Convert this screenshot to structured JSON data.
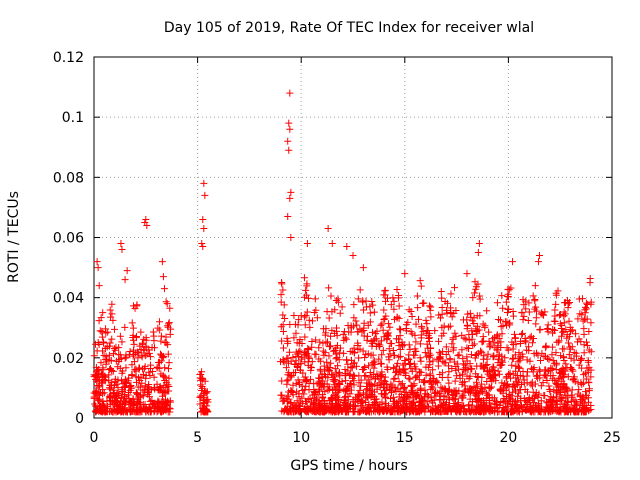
{
  "chart_data": {
    "type": "scatter",
    "title": "Day 105 of 2019, Rate Of TEC Index for receiver wlal",
    "xlabel": "GPS time / hours",
    "ylabel": "ROTI / TECUs",
    "xlim": [
      0,
      25
    ],
    "ylim": [
      0,
      0.12
    ],
    "x_ticks": [
      0,
      5,
      10,
      15,
      20,
      25
    ],
    "x_tick_labels": [
      "0",
      "5",
      "10",
      "15",
      "20",
      "25"
    ],
    "y_ticks": [
      0,
      0.02,
      0.04,
      0.06,
      0.08,
      0.1,
      0.12
    ],
    "y_tick_labels": [
      "0",
      "0.02",
      "0.04",
      "0.06",
      "0.08",
      "0.1",
      "0.12"
    ],
    "grid": true,
    "marker": "+",
    "color": "#ff0000",
    "series": [
      {
        "name": "ROTI",
        "segments": [
          {
            "x_start": 0.0,
            "x_end": 3.7,
            "typical_max": 0.03
          },
          {
            "x_start": 5.1,
            "x_end": 5.5,
            "typical_max": 0.012
          },
          {
            "x_start": 9.0,
            "x_end": 24.0,
            "typical_max": 0.035
          }
        ],
        "outliers": [
          {
            "x": 0.15,
            "y": 0.052
          },
          {
            "x": 0.2,
            "y": 0.05
          },
          {
            "x": 0.25,
            "y": 0.044
          },
          {
            "x": 1.3,
            "y": 0.058
          },
          {
            "x": 1.35,
            "y": 0.056
          },
          {
            "x": 1.5,
            "y": 0.046
          },
          {
            "x": 1.6,
            "y": 0.049
          },
          {
            "x": 2.45,
            "y": 0.065
          },
          {
            "x": 2.5,
            "y": 0.066
          },
          {
            "x": 2.55,
            "y": 0.064
          },
          {
            "x": 3.3,
            "y": 0.052
          },
          {
            "x": 3.35,
            "y": 0.047
          },
          {
            "x": 3.4,
            "y": 0.043
          },
          {
            "x": 5.3,
            "y": 0.078
          },
          {
            "x": 5.35,
            "y": 0.074
          },
          {
            "x": 5.25,
            "y": 0.066
          },
          {
            "x": 5.3,
            "y": 0.063
          },
          {
            "x": 5.2,
            "y": 0.058
          },
          {
            "x": 5.25,
            "y": 0.057
          },
          {
            "x": 9.45,
            "y": 0.108
          },
          {
            "x": 9.4,
            "y": 0.098
          },
          {
            "x": 9.45,
            "y": 0.096
          },
          {
            "x": 9.35,
            "y": 0.092
          },
          {
            "x": 9.4,
            "y": 0.089
          },
          {
            "x": 9.5,
            "y": 0.075
          },
          {
            "x": 9.45,
            "y": 0.073
          },
          {
            "x": 9.35,
            "y": 0.067
          },
          {
            "x": 9.5,
            "y": 0.06
          },
          {
            "x": 11.3,
            "y": 0.063
          },
          {
            "x": 11.5,
            "y": 0.058
          },
          {
            "x": 12.2,
            "y": 0.057
          },
          {
            "x": 10.3,
            "y": 0.058
          },
          {
            "x": 12.5,
            "y": 0.054
          },
          {
            "x": 13.0,
            "y": 0.05
          },
          {
            "x": 15.0,
            "y": 0.048
          },
          {
            "x": 18.6,
            "y": 0.058
          },
          {
            "x": 18.55,
            "y": 0.055
          },
          {
            "x": 18.0,
            "y": 0.048
          },
          {
            "x": 20.2,
            "y": 0.052
          },
          {
            "x": 21.5,
            "y": 0.054
          },
          {
            "x": 21.45,
            "y": 0.052
          },
          {
            "x": 21.3,
            "y": 0.044
          }
        ]
      }
    ]
  }
}
